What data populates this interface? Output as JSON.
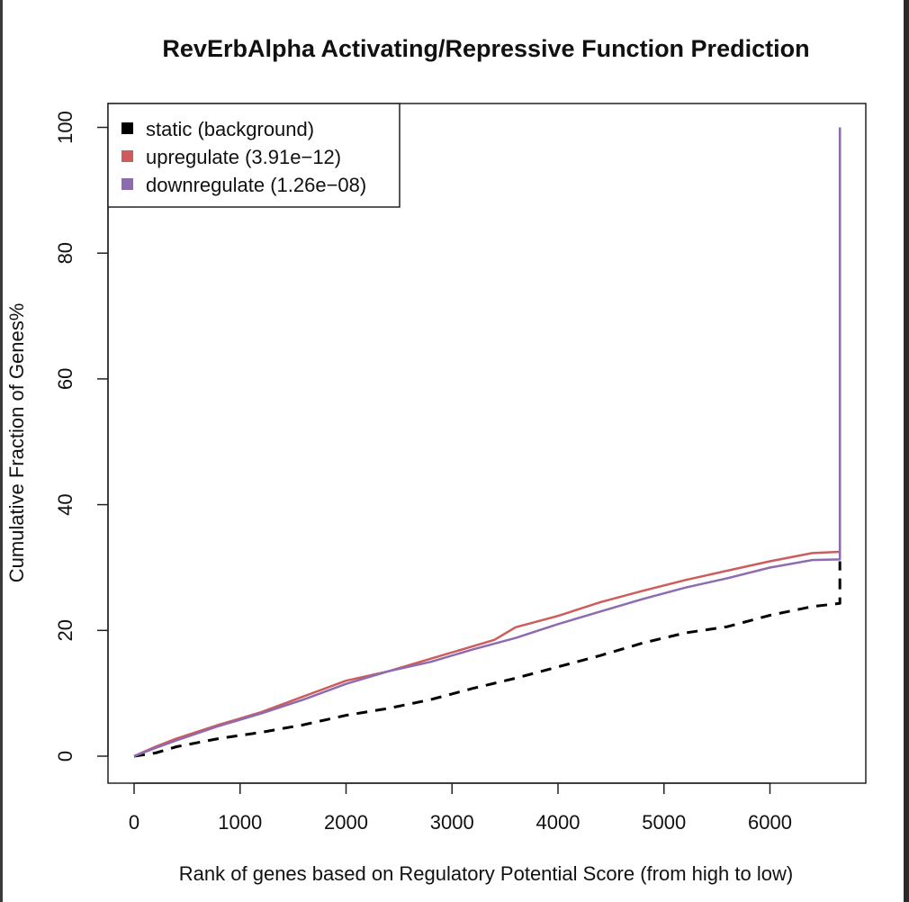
{
  "chart_data": {
    "type": "line",
    "title": "RevErbAlpha Activating/Repressive Function Prediction",
    "xlabel": "Rank of genes based on Regulatory Potential Score (from high to low)",
    "ylabel": "Cumulative Fraction of Genes%",
    "xlim": [
      0,
      6900
    ],
    "ylim": [
      0,
      103
    ],
    "xticks": [
      0,
      1000,
      2000,
      3000,
      4000,
      5000,
      6000
    ],
    "yticks": [
      0,
      20,
      40,
      60,
      80,
      100
    ],
    "legend_position": "top-left",
    "grid": false,
    "series": [
      {
        "name": "static (background)",
        "color": "#000000",
        "dash": true,
        "x": [
          0,
          200,
          400,
          800,
          1200,
          1600,
          2000,
          2400,
          2800,
          3200,
          3600,
          4000,
          4400,
          4800,
          5200,
          5600,
          6000,
          6400,
          6660,
          6660
        ],
        "y": [
          0,
          0.5,
          1.5,
          2.8,
          3.8,
          5.0,
          6.5,
          7.6,
          9.0,
          10.8,
          12.4,
          14.2,
          16.0,
          18.0,
          19.6,
          20.6,
          22.4,
          23.8,
          24.3,
          31.0
        ]
      },
      {
        "name": "upregulate (3.91e−12)",
        "color": "#cd5c5c",
        "dash": false,
        "x": [
          0,
          200,
          400,
          800,
          1200,
          1600,
          2000,
          2400,
          2800,
          3200,
          3400,
          3600,
          4000,
          4400,
          4800,
          5200,
          5600,
          6000,
          6400,
          6660,
          6660
        ],
        "y": [
          0,
          1.5,
          2.8,
          5.0,
          7.0,
          9.5,
          12.0,
          13.5,
          15.5,
          17.5,
          18.5,
          20.5,
          22.3,
          24.5,
          26.3,
          28.0,
          29.5,
          31.0,
          32.3,
          32.5,
          100
        ]
      },
      {
        "name": "downregulate (1.26e−08)",
        "color": "#8c6bb1",
        "dash": false,
        "x": [
          0,
          200,
          400,
          800,
          1200,
          1600,
          2000,
          2400,
          2800,
          3200,
          3600,
          4000,
          4400,
          4800,
          5200,
          5600,
          6000,
          6400,
          6660,
          6660
        ],
        "y": [
          0,
          1.3,
          2.5,
          4.8,
          6.8,
          9.0,
          11.5,
          13.5,
          15.0,
          17.0,
          18.8,
          21.0,
          23.0,
          25.0,
          26.8,
          28.3,
          30.0,
          31.2,
          31.3,
          100
        ]
      }
    ]
  }
}
